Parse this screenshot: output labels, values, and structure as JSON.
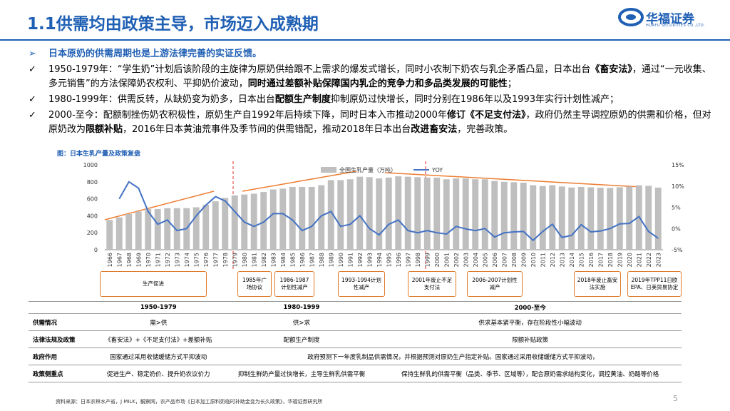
{
  "header": {
    "title": "1.1供需均由政策主导，市场迈入成熟期",
    "logo_name": "华福证券",
    "logo_en": "HUAFU SECURITIES CO.,LTD."
  },
  "bullets": [
    {
      "marker": "➢",
      "segments": [
        {
          "text": "日本原奶的供需周期也是上游法律完善的实证反馈。",
          "bold": true
        }
      ]
    },
    {
      "marker": "✓",
      "segments": [
        {
          "text": "1950-1979年：“学生奶”计划后该阶段的主旋律为原奶供给跟不上需求的爆发式增长，同时小农制下奶农与乳企矛盾凸显，日本出台",
          "bold": false
        },
        {
          "text": "《畜安法》",
          "bold": true
        },
        {
          "text": "，通过“一元收集、多元销售”的方法保障奶农权利、平抑奶价波动，",
          "bold": false
        },
        {
          "text": "同时通过差额补贴保障国内乳企的竞争力和多品类发展的可能性",
          "bold": true
        },
        {
          "text": "；",
          "bold": false
        }
      ]
    },
    {
      "marker": "✓",
      "segments": [
        {
          "text": "1980-1999年：供需反转，从缺奶变为奶多，日本出台",
          "bold": false
        },
        {
          "text": "配额生产制度",
          "bold": true
        },
        {
          "text": "抑制原奶过快增长，同时分别在1986年以及1993年实行计划性减产；",
          "bold": false
        }
      ]
    },
    {
      "marker": "✓",
      "segments": [
        {
          "text": "2000-至今：配额制挫伤奶农积极性，原奶生产自1992年后持续下降，同时日本入市推动2000年",
          "bold": false
        },
        {
          "text": "修订《不足支付法》",
          "bold": true
        },
        {
          "text": "，政府仍然主导调控原奶的供需和价格，但对原奶改为",
          "bold": false
        },
        {
          "text": "限额补贴",
          "bold": true
        },
        {
          "text": "，2016年日本黄油荒事件及季节间的供需错配，推动2018年日本出台",
          "bold": false
        },
        {
          "text": "改进畜安法",
          "bold": true
        },
        {
          "text": "，完善政策。",
          "bold": false
        }
      ]
    }
  ],
  "chart_data": {
    "type": "bar",
    "title": "图：日本生乳产量及政策复盘",
    "categories": [
      "1966",
      "1967",
      "1968",
      "1969",
      "1970",
      "1971",
      "1972",
      "1973",
      "1974",
      "1975",
      "1976",
      "1977",
      "1978",
      "1979",
      "1980",
      "1981",
      "1982",
      "1983",
      "1984",
      "1985",
      "1986",
      "1987",
      "1988",
      "1989",
      "1990",
      "1991",
      "1992",
      "1993",
      "1994",
      "1995",
      "1996",
      "1997",
      "1998",
      "1999",
      "2000",
      "2001",
      "2002",
      "2003",
      "2004",
      "2005",
      "2006",
      "2007",
      "2008",
      "2009",
      "2010",
      "2011",
      "2012",
      "2013",
      "2014",
      "2015",
      "2016",
      "2017",
      "2018",
      "2019",
      "2020",
      "2021",
      "2022",
      "2023"
    ],
    "series": [
      {
        "name": "全国生乳产量（万吨）",
        "color": "#bfbfbf",
        "values": [
          350,
          380,
          420,
          450,
          480,
          480,
          490,
          490,
          490,
          500,
          530,
          570,
          610,
          640,
          650,
          660,
          680,
          710,
          720,
          740,
          740,
          740,
          760,
          820,
          820,
          830,
          860,
          855,
          840,
          850,
          865,
          860,
          855,
          850,
          850,
          830,
          840,
          840,
          830,
          830,
          810,
          800,
          795,
          790,
          760,
          750,
          760,
          745,
          733,
          740,
          735,
          730,
          728,
          736,
          744,
          759,
          753,
          732
        ]
      },
      {
        "name": "YOY",
        "color": "#4472c4",
        "axis": "y2",
        "type": "line",
        "values": [
          null,
          7,
          11,
          9.5,
          4,
          1,
          2,
          -0.5,
          0,
          3,
          5.5,
          7.5,
          6.5,
          4,
          1.5,
          0.5,
          1.5,
          3.5,
          3.5,
          2,
          -0.5,
          0.5,
          3,
          4,
          0.5,
          1,
          3,
          0,
          -1.5,
          1,
          2,
          -0.5,
          -1,
          -0.5,
          -1,
          -1.3,
          0.5,
          -0.1,
          -0.5,
          0,
          -2,
          -1,
          -0.8,
          -0.7,
          -2.8,
          -0.7,
          1,
          -2.1,
          -1.6,
          0.9,
          -0.8,
          -0.6,
          0,
          1.1,
          1.2,
          2.8,
          -0.7,
          -2.3
        ]
      }
    ],
    "ylim": [
      0,
      1000
    ],
    "yticks": [
      0,
      200,
      400,
      600,
      800,
      1000
    ],
    "y2lim": [
      -5,
      15
    ],
    "y2ticks": [
      {
        "value": -5,
        "label": "-5%"
      },
      {
        "value": 0,
        "label": "0%"
      },
      {
        "value": 5,
        "label": "5%"
      },
      {
        "value": 10,
        "label": "10%"
      },
      {
        "value": 15,
        "label": "15%"
      }
    ],
    "annotations": [
      "生产促进",
      "1985年广场协议",
      "1986-1987计划性减产",
      "1993-1994计划性减产",
      "2001年废止不足支付法",
      "2006-2007计划性减产",
      "2018年废止畜安法实施",
      "2019年TPP11日欧EPA、日美贸易协定"
    ]
  },
  "table": {
    "header": [
      "1950-1979",
      "1980-1999",
      "2000-至今"
    ],
    "rows": [
      [
        "供需情况",
        "需>供",
        "供>求",
        "供求基本紧平衡，存在阶段性小幅波动"
      ],
      [
        "法律法规及政策",
        "《畜安法》+《不足支付法》+差额补贴",
        "配额生产制度",
        "限额补贴政策"
      ],
      [
        "政府作用",
        "国家通过采用收储缓储方式平抑波动",
        "政府预测下一年度乳制品供需情况，并根据预测对原奶生产指定补贴。国家通过采用收储缓储方式平抑波动，"
      ],
      [
        "政策侧重点",
        "促进生产、稳定奶价、提升奶农议价力",
        "抑制生鲜奶产量过快增长，主导生鲜乳供需平衡",
        "保持生鲜乳的供需平衡（品类、季节、区域等），配合原奶需求结构变化，调控黄油、奶酪等价格"
      ]
    ]
  },
  "footer": {
    "source": "资料来源：日本农林水产省，J MILK，観察网，农产品市场《日本加工原料奶临时补助金变为长久政策》，华福证券研究所",
    "page": "5"
  }
}
